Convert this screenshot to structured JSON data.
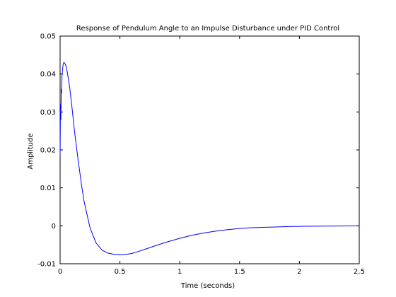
{
  "chart_data": {
    "type": "line",
    "title": "Response of Pendulum Angle to an Impulse Disturbance under PID Control",
    "xlabel": "Time (seconds)",
    "ylabel": "Amplitude",
    "xlim": [
      0,
      2.5
    ],
    "ylim": [
      -0.01,
      0.05
    ],
    "xticks": [
      0,
      0.5,
      1,
      1.5,
      2,
      2.5
    ],
    "xtick_labels": [
      "0",
      "0.5",
      "1",
      "1.5",
      "2",
      "2.5"
    ],
    "yticks": [
      -0.01,
      0,
      0.01,
      0.02,
      0.03,
      0.04,
      0.05
    ],
    "ytick_labels": [
      "-0.01",
      "0",
      "0.01",
      "0.02",
      "0.03",
      "0.04",
      "0.05"
    ],
    "grid": false,
    "legend": "none",
    "colors": {
      "line": "#0000ff",
      "axes": "#000000",
      "background": "#ffffff"
    },
    "series": [
      {
        "x": [
          0,
          0.003,
          0.006,
          0.01,
          0.013,
          0.016,
          0.02,
          0.025,
          0.03,
          0.035,
          0.04,
          0.05,
          0.06,
          0.08,
          0.1,
          0.12,
          0.15,
          0.18,
          0.2,
          0.25,
          0.3,
          0.35,
          0.4,
          0.45,
          0.5,
          0.55,
          0.58,
          0.6,
          0.65,
          0.7,
          0.8,
          0.9,
          1.0,
          1.1,
          1.2,
          1.3,
          1.4,
          1.5,
          1.6,
          1.7,
          1.8,
          1.9,
          2.0,
          2.1,
          2.2,
          2.3,
          2.4,
          2.5
        ],
        "y": [
          0.0185,
          0.032,
          0.028,
          0.036,
          0.035,
          0.0395,
          0.041,
          0.0425,
          0.043,
          0.043,
          0.0428,
          0.042,
          0.0405,
          0.0365,
          0.031,
          0.025,
          0.0175,
          0.0105,
          0.0065,
          -0.0005,
          -0.0045,
          -0.0064,
          -0.0072,
          -0.0075,
          -0.0076,
          -0.0075,
          -0.0074,
          -0.0073,
          -0.0068,
          -0.0063,
          -0.0052,
          -0.0042,
          -0.0033,
          -0.0025,
          -0.0019,
          -0.0014,
          -0.001,
          -0.0007,
          -0.0005,
          -0.0004,
          -0.0003,
          -0.0002,
          -0.00015,
          -0.0001,
          -7e-05,
          -5e-05,
          -2e-05,
          0
        ]
      }
    ]
  }
}
